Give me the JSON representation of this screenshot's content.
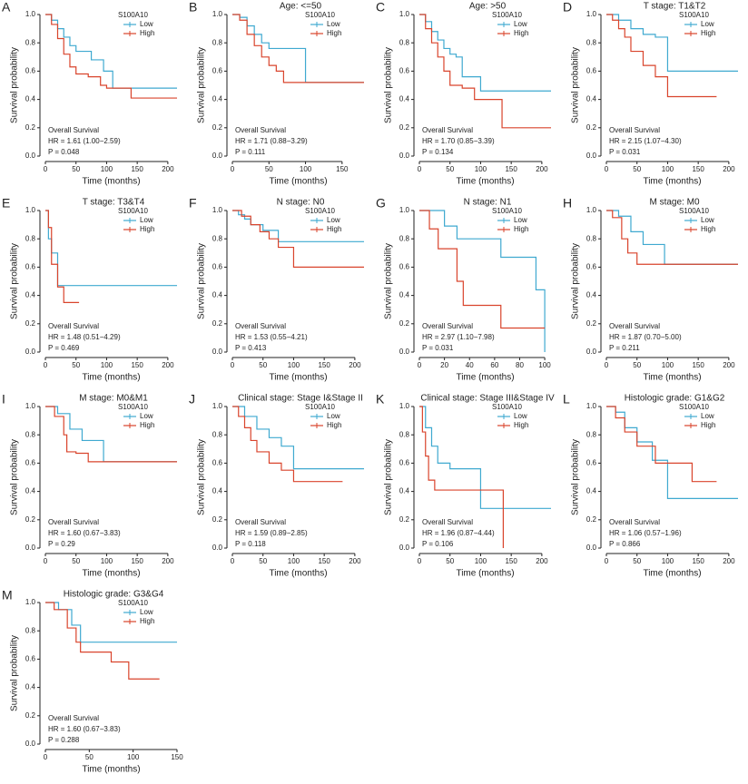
{
  "chart_data": [
    {
      "type": "line",
      "panel": "A",
      "legend_title": "S100A10",
      "xlabel": "Time (months)",
      "ylabel": "Survival probability",
      "xlim": [
        0,
        215
      ],
      "xticks": [
        0,
        50,
        100,
        150,
        200
      ],
      "ylim": [
        0,
        1
      ],
      "yticks": [
        {
          "value": 0,
          "label": "0.0"
        },
        0.2,
        0.4,
        0.6,
        0.8,
        {
          "value": 1,
          "label": "1.0"
        }
      ],
      "annotation": [
        "Overall Survival",
        "HR = 1.61 (1.00−2.59)",
        "P = 0.048"
      ],
      "series": [
        {
          "name": "Low",
          "color": "#3fa9d0",
          "x": [
            0,
            10,
            20,
            30,
            40,
            50,
            75,
            95,
            110,
            215
          ],
          "values": [
            1,
            0.96,
            0.9,
            0.84,
            0.78,
            0.74,
            0.68,
            0.6,
            0.48,
            0.48
          ]
        },
        {
          "name": "High",
          "color": "#d9442c",
          "x": [
            0,
            10,
            20,
            30,
            40,
            50,
            70,
            90,
            100,
            140,
            215
          ],
          "values": [
            1,
            0.93,
            0.83,
            0.72,
            0.63,
            0.58,
            0.56,
            0.5,
            0.48,
            0.41,
            0.41
          ]
        }
      ]
    },
    {
      "type": "line",
      "panel": "B",
      "title": "Age: <=50",
      "legend_title": "S100A10",
      "xlabel": "Time (months)",
      "ylabel": "Survival probability",
      "xlim": [
        0,
        180
      ],
      "xticks": [
        0,
        50,
        100,
        150
      ],
      "ylim": [
        0,
        1
      ],
      "yticks": [
        {
          "value": 0,
          "label": "0.0"
        },
        0.2,
        0.4,
        0.6,
        0.8,
        {
          "value": 1,
          "label": "1.0"
        }
      ],
      "annotation": [
        "Overall Survival",
        "HR = 1.71 (0.88−3.29)",
        "P = 0.111"
      ],
      "series": [
        {
          "name": "Low",
          "color": "#3fa9d0",
          "x": [
            0,
            10,
            20,
            30,
            40,
            50,
            100,
            180
          ],
          "values": [
            1,
            0.98,
            0.92,
            0.86,
            0.8,
            0.76,
            0.52,
            0.52
          ]
        },
        {
          "name": "High",
          "color": "#d9442c",
          "x": [
            0,
            10,
            20,
            30,
            40,
            50,
            60,
            70,
            180
          ],
          "values": [
            1,
            0.96,
            0.86,
            0.78,
            0.7,
            0.64,
            0.6,
            0.52,
            0.52
          ]
        }
      ]
    },
    {
      "type": "line",
      "panel": "C",
      "title": "Age: >50",
      "legend_title": "S100A10",
      "xlabel": "Time (months)",
      "ylabel": "Survival probability",
      "xlim": [
        0,
        215
      ],
      "xticks": [
        0,
        50,
        100,
        150,
        200
      ],
      "ylim": [
        0,
        1
      ],
      "yticks": [
        {
          "value": 0,
          "label": "0.0"
        },
        0.2,
        0.4,
        0.6,
        0.8,
        {
          "value": 1,
          "label": "1.0"
        }
      ],
      "annotation": [
        "Overall Survival",
        "HR = 1.70 (0.85−3.39)",
        "P = 0.134"
      ],
      "series": [
        {
          "name": "Low",
          "color": "#3fa9d0",
          "x": [
            0,
            10,
            20,
            30,
            40,
            50,
            60,
            70,
            100,
            215
          ],
          "values": [
            1,
            0.95,
            0.88,
            0.82,
            0.76,
            0.72,
            0.7,
            0.56,
            0.46,
            0.46
          ]
        },
        {
          "name": "High",
          "color": "#d9442c",
          "x": [
            0,
            10,
            20,
            30,
            40,
            50,
            70,
            90,
            135,
            215
          ],
          "values": [
            1,
            0.9,
            0.8,
            0.7,
            0.6,
            0.5,
            0.48,
            0.4,
            0.2,
            0.2
          ]
        }
      ]
    },
    {
      "type": "line",
      "panel": "D",
      "title": "T stage: T1&T2",
      "legend_title": "S100A10",
      "xlabel": "Time (months)",
      "ylabel": "Survival probability",
      "xlim": [
        0,
        215
      ],
      "xticks": [
        0,
        50,
        100,
        150,
        200
      ],
      "ylim": [
        0,
        1
      ],
      "yticks": [
        {
          "value": 0,
          "label": "0.0"
        },
        0.2,
        0.4,
        0.6,
        0.8,
        {
          "value": 1,
          "label": "1.0"
        }
      ],
      "annotation": [
        "Overall Survival",
        "HR = 2.15 (1.07−4.30)",
        "P = 0.031"
      ],
      "series": [
        {
          "name": "Low",
          "color": "#3fa9d0",
          "x": [
            0,
            20,
            40,
            60,
            80,
            100,
            215
          ],
          "values": [
            1,
            0.96,
            0.9,
            0.86,
            0.84,
            0.6,
            0.6
          ]
        },
        {
          "name": "High",
          "color": "#d9442c",
          "x": [
            0,
            10,
            20,
            30,
            40,
            60,
            80,
            100,
            180
          ],
          "values": [
            1,
            0.96,
            0.9,
            0.84,
            0.74,
            0.64,
            0.56,
            0.42,
            0.42
          ]
        }
      ]
    },
    {
      "type": "line",
      "panel": "E",
      "title": "T stage: T3&T4",
      "legend_title": "S100A10",
      "xlabel": "Time (months)",
      "ylabel": "Survival probability",
      "xlim": [
        0,
        215
      ],
      "xticks": [
        0,
        50,
        100,
        150,
        200
      ],
      "ylim": [
        0,
        1
      ],
      "yticks": [
        {
          "value": 0,
          "label": "0.0"
        },
        0.2,
        0.4,
        0.6,
        0.8,
        {
          "value": 1,
          "label": "1.0"
        }
      ],
      "annotation": [
        "Overall Survival",
        "HR = 1.48 (0.51−4.29)",
        "P = 0.469"
      ],
      "series": [
        {
          "name": "Low",
          "color": "#3fa9d0",
          "x": [
            0,
            5,
            10,
            20,
            215
          ],
          "values": [
            1,
            0.8,
            0.7,
            0.47,
            0.47
          ]
        },
        {
          "name": "High",
          "color": "#d9442c",
          "x": [
            0,
            5,
            10,
            20,
            30,
            55
          ],
          "values": [
            1,
            0.88,
            0.62,
            0.46,
            0.35,
            0.35
          ]
        }
      ]
    },
    {
      "type": "line",
      "panel": "F",
      "title": "N stage: N0",
      "legend_title": "S100A10",
      "xlabel": "Time (months)",
      "ylabel": "Survival probability",
      "xlim": [
        0,
        215
      ],
      "xticks": [
        0,
        50,
        100,
        150,
        200
      ],
      "ylim": [
        0,
        1
      ],
      "yticks": [
        {
          "value": 0,
          "label": "0.0"
        },
        0.2,
        0.4,
        0.6,
        0.8,
        {
          "value": 1,
          "label": "1.0"
        }
      ],
      "annotation": [
        "Overall Survival",
        "HR = 1.53 (0.55−4.21)",
        "P = 0.413"
      ],
      "series": [
        {
          "name": "Low",
          "color": "#3fa9d0",
          "x": [
            0,
            10,
            20,
            30,
            50,
            75,
            215
          ],
          "values": [
            1,
            0.97,
            0.94,
            0.9,
            0.86,
            0.78,
            0.78
          ]
        },
        {
          "name": "High",
          "color": "#d9442c",
          "x": [
            0,
            15,
            30,
            45,
            60,
            75,
            100,
            215
          ],
          "values": [
            1,
            0.96,
            0.9,
            0.85,
            0.8,
            0.74,
            0.6,
            0.6
          ]
        }
      ]
    },
    {
      "type": "line",
      "panel": "G",
      "title": "N stage: N1",
      "legend_title": "S100A10",
      "xlabel": "Time (months)",
      "ylabel": "Survival probability",
      "xlim": [
        0,
        105
      ],
      "xticks": [
        0,
        20,
        40,
        60,
        80,
        100
      ],
      "ylim": [
        0,
        1
      ],
      "yticks": [
        {
          "value": 0,
          "label": "0.0"
        },
        0.2,
        0.4,
        0.6,
        0.8,
        {
          "value": 1,
          "label": "1.0"
        }
      ],
      "annotation": [
        "Overall Survival",
        "HR = 2.97 (1.10−7.98)",
        "P = 0.031"
      ],
      "series": [
        {
          "name": "Low",
          "color": "#3fa9d0",
          "x": [
            0,
            20,
            30,
            65,
            93,
            100
          ],
          "values": [
            1,
            0.89,
            0.8,
            0.67,
            0.44,
            0
          ]
        },
        {
          "name": "High",
          "color": "#d9442c",
          "x": [
            0,
            8,
            15,
            30,
            35,
            65,
            100
          ],
          "values": [
            1,
            0.87,
            0.73,
            0.5,
            0.33,
            0.17,
            0.17
          ]
        }
      ]
    },
    {
      "type": "line",
      "panel": "H",
      "title": "M stage: M0",
      "legend_title": "S100A10",
      "xlabel": "Time (months)",
      "ylabel": "Survival probability",
      "xlim": [
        0,
        215
      ],
      "xticks": [
        0,
        50,
        100,
        150,
        200
      ],
      "ylim": [
        0,
        1
      ],
      "yticks": [
        {
          "value": 0,
          "label": "0.0"
        },
        0.2,
        0.4,
        0.6,
        0.8,
        {
          "value": 1,
          "label": "1.0"
        }
      ],
      "annotation": [
        "Overall Survival",
        "HR = 1.87 (0.70−5.00)",
        "P = 0.211"
      ],
      "series": [
        {
          "name": "Low",
          "color": "#3fa9d0",
          "x": [
            0,
            20,
            40,
            60,
            95,
            215
          ],
          "values": [
            1,
            0.96,
            0.85,
            0.76,
            0.62,
            0.62
          ]
        },
        {
          "name": "High",
          "color": "#d9442c",
          "x": [
            0,
            10,
            25,
            35,
            50,
            215
          ],
          "values": [
            1,
            0.95,
            0.8,
            0.7,
            0.62,
            0.62
          ]
        }
      ]
    },
    {
      "type": "line",
      "panel": "I",
      "title": "M stage: M0&M1",
      "legend_title": "S100A10",
      "xlabel": "Time (months)",
      "ylabel": "Survival probability",
      "xlim": [
        0,
        215
      ],
      "xticks": [
        0,
        50,
        100,
        150,
        200
      ],
      "ylim": [
        0,
        1
      ],
      "yticks": [
        {
          "value": 0,
          "label": "0.0"
        },
        0.2,
        0.4,
        0.6,
        0.8,
        {
          "value": 1,
          "label": "1.0"
        }
      ],
      "annotation": [
        "Overall Survival",
        "HR = 1.60 (0.67−3.83)",
        "P = 0.29"
      ],
      "series": [
        {
          "name": "Low",
          "color": "#3fa9d0",
          "x": [
            0,
            20,
            40,
            60,
            95,
            215
          ],
          "values": [
            1,
            0.95,
            0.84,
            0.76,
            0.61,
            0.61
          ]
        },
        {
          "name": "High",
          "color": "#d9442c",
          "x": [
            0,
            15,
            30,
            35,
            50,
            70,
            215
          ],
          "values": [
            1,
            0.93,
            0.8,
            0.68,
            0.67,
            0.61,
            0.61
          ]
        }
      ]
    },
    {
      "type": "line",
      "panel": "J",
      "title": "Clinical stage: Stage I&Stage II",
      "legend_title": "S100A10",
      "xlabel": "Time (months)",
      "ylabel": "Survival probability",
      "xlim": [
        0,
        215
      ],
      "xticks": [
        0,
        50,
        100,
        150,
        200
      ],
      "ylim": [
        0,
        1
      ],
      "yticks": [
        {
          "value": 0,
          "label": "0.0"
        },
        0.2,
        0.4,
        0.6,
        0.8,
        {
          "value": 1,
          "label": "1.0"
        }
      ],
      "annotation": [
        "Overall Survival",
        "HR = 1.59 (0.89−2.85)",
        "P = 0.118"
      ],
      "series": [
        {
          "name": "Low",
          "color": "#3fa9d0",
          "x": [
            0,
            20,
            40,
            60,
            80,
            100,
            215
          ],
          "values": [
            1,
            0.93,
            0.84,
            0.78,
            0.72,
            0.56,
            0.56
          ]
        },
        {
          "name": "High",
          "color": "#d9442c",
          "x": [
            0,
            10,
            20,
            30,
            40,
            60,
            80,
            100,
            180
          ],
          "values": [
            1,
            0.93,
            0.85,
            0.76,
            0.68,
            0.6,
            0.55,
            0.47,
            0.47
          ]
        }
      ]
    },
    {
      "type": "line",
      "panel": "K",
      "title": "Clinical stage: Stage III&Stage IV",
      "legend_title": "S100A10",
      "xlabel": "Time (months)",
      "ylabel": "Survival probability",
      "xlim": [
        0,
        215
      ],
      "xticks": [
        0,
        50,
        100,
        150,
        200
      ],
      "ylim": [
        0,
        1
      ],
      "yticks": [
        {
          "value": 0,
          "label": "0.0"
        },
        0.2,
        0.4,
        0.6,
        0.8,
        {
          "value": 1,
          "label": "1.0"
        }
      ],
      "annotation": [
        "Overall Survival",
        "HR = 1.96 (0.87−4.44)",
        "P = 0.106"
      ],
      "series": [
        {
          "name": "Low",
          "color": "#3fa9d0",
          "x": [
            0,
            10,
            20,
            30,
            50,
            100,
            215
          ],
          "values": [
            1,
            0.85,
            0.72,
            0.6,
            0.56,
            0.28,
            0.28
          ]
        },
        {
          "name": "High",
          "color": "#d9442c",
          "x": [
            0,
            5,
            10,
            15,
            25,
            137
          ],
          "values": [
            1,
            0.82,
            0.65,
            0.48,
            0.41,
            0
          ]
        }
      ]
    },
    {
      "type": "line",
      "panel": "L",
      "title": "Histologic grade: G1&G2",
      "legend_title": "S100A10",
      "xlabel": "Time (months)",
      "ylabel": "Survival probability",
      "xlim": [
        0,
        215
      ],
      "xticks": [
        0,
        50,
        100,
        150,
        200
      ],
      "ylim": [
        0,
        1
      ],
      "yticks": [
        {
          "value": 0,
          "label": "0.0"
        },
        0.2,
        0.4,
        0.6,
        0.8,
        {
          "value": 1,
          "label": "1.0"
        }
      ],
      "annotation": [
        "Overall Survival",
        "HR = 1.06 (0.57−1.96)",
        "P = 0.866"
      ],
      "series": [
        {
          "name": "Low",
          "color": "#3fa9d0",
          "x": [
            0,
            15,
            30,
            50,
            75,
            100,
            215
          ],
          "values": [
            1,
            0.96,
            0.85,
            0.75,
            0.62,
            0.35,
            0.35
          ]
        },
        {
          "name": "High",
          "color": "#d9442c",
          "x": [
            0,
            15,
            30,
            50,
            80,
            140,
            180
          ],
          "values": [
            1,
            0.92,
            0.82,
            0.72,
            0.6,
            0.47,
            0.47
          ]
        }
      ]
    },
    {
      "type": "line",
      "panel": "M",
      "title": "Histologic grade: G3&G4",
      "legend_title": "S100A10",
      "xlabel": "Time (months)",
      "ylabel": "Survival probability",
      "xlim": [
        0,
        150
      ],
      "xticks": [
        0,
        50,
        100,
        150
      ],
      "ylim": [
        0,
        1
      ],
      "yticks": [
        {
          "value": 0,
          "label": "0.0"
        },
        0.2,
        0.4,
        0.6,
        0.8,
        {
          "value": 1,
          "label": "1.0"
        }
      ],
      "annotation": [
        "Overall Survival",
        "HR = 1.60 (0.67−3.83)",
        "P = 0.288"
      ],
      "series": [
        {
          "name": "Low",
          "color": "#3fa9d0",
          "x": [
            0,
            15,
            30,
            40,
            150
          ],
          "values": [
            1,
            0.95,
            0.84,
            0.72,
            0.72
          ]
        },
        {
          "name": "High",
          "color": "#d9442c",
          "x": [
            0,
            10,
            25,
            35,
            40,
            75,
            95,
            130
          ],
          "values": [
            1,
            0.95,
            0.82,
            0.72,
            0.65,
            0.58,
            0.46,
            0.46
          ]
        }
      ]
    }
  ]
}
